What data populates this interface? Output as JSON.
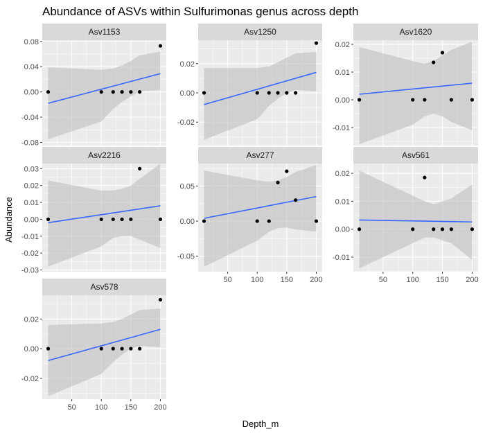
{
  "chart_data": {
    "type": "scatter",
    "title": "Abundance of ASVs within Sulfurimonas genus across depth",
    "xlabel": "Depth_m",
    "ylabel": "Abundance",
    "x_ticks": [
      50,
      100,
      150,
      200
    ],
    "xlim": [
      0,
      210
    ],
    "facet_grid": "free-y",
    "colors": {
      "panel_bg": "#ebebeb",
      "grid_major": "#ffffff",
      "strip_bg": "#d9d9d9",
      "point": "#000000",
      "fit_line": "#3366ff",
      "ribbon": "#bebebe"
    },
    "panels": [
      {
        "name": "Asv1153",
        "ylim": [
          -0.085,
          0.082
        ],
        "y_ticks": [
          -0.08,
          -0.04,
          0.0,
          0.04,
          0.08
        ],
        "y_tick_labels": [
          "-0.08",
          "-0.04",
          "0.00",
          "0.04",
          "0.08"
        ],
        "x": [
          10,
          100,
          120,
          135,
          150,
          165,
          200
        ],
        "y": [
          0,
          0,
          0,
          0,
          0,
          0,
          0.073
        ],
        "fit": {
          "x0": 10,
          "y0": -0.018,
          "x1": 200,
          "y1": 0.029
        },
        "ribbon_lower": [
          -0.075,
          -0.047,
          -0.027,
          -0.016,
          -0.007,
          0.001,
          0.003
        ],
        "ribbon_upper": [
          0.039,
          0.035,
          0.037,
          0.042,
          0.049,
          0.058,
          0.064
        ]
      },
      {
        "name": "Asv1250",
        "ylim": [
          -0.036,
          0.036
        ],
        "y_ticks": [
          -0.02,
          0.0,
          0.02
        ],
        "y_tick_labels": [
          "-0.02",
          "0.00",
          "0.02"
        ],
        "x": [
          10,
          100,
          120,
          135,
          150,
          165,
          200
        ],
        "y": [
          0,
          0,
          0,
          0,
          0,
          0,
          0.034
        ],
        "fit": {
          "x0": 10,
          "y0": -0.008,
          "x1": 200,
          "y1": 0.014
        },
        "ribbon_lower": [
          -0.032,
          -0.018,
          -0.009,
          -0.004,
          0.0,
          0.002,
          0.001
        ],
        "ribbon_upper": [
          0.017,
          0.017,
          0.018,
          0.021,
          0.024,
          0.027,
          0.028
        ]
      },
      {
        "name": "Asv1620",
        "ylim": [
          -0.0165,
          0.0215
        ],
        "y_ticks": [
          -0.01,
          0.0,
          0.01,
          0.02
        ],
        "y_tick_labels": [
          "-0.01",
          "0.00",
          "0.01",
          "0.02"
        ],
        "x": [
          10,
          100,
          120,
          135,
          150,
          165,
          200
        ],
        "y": [
          0,
          0,
          0,
          0.0135,
          0.017,
          0,
          0
        ],
        "fit": {
          "x0": 10,
          "y0": 0.002,
          "x1": 200,
          "y1": 0.006
        },
        "ribbon_lower": [
          -0.016,
          -0.009,
          -0.006,
          -0.005,
          -0.006,
          -0.008,
          -0.011
        ],
        "ribbon_upper": [
          0.019,
          0.014,
          0.013,
          0.014,
          0.016,
          0.018,
          0.021
        ]
      },
      {
        "name": "Asv2216",
        "ylim": [
          -0.031,
          0.033
        ],
        "y_ticks": [
          -0.03,
          -0.02,
          -0.01,
          0.0,
          0.01,
          0.02,
          0.03
        ],
        "y_tick_labels": [
          "-0.03",
          "-0.02",
          "-0.01",
          "0.00",
          "0.01",
          "0.02",
          "0.03"
        ],
        "x": [
          10,
          100,
          120,
          135,
          150,
          165,
          200
        ],
        "y": [
          0,
          0,
          0,
          0,
          0,
          0.03,
          0
        ],
        "fit": {
          "x0": 10,
          "y0": -0.002,
          "x1": 200,
          "y1": 0.008
        },
        "ribbon_lower": [
          -0.028,
          -0.016,
          -0.011,
          -0.01,
          -0.01,
          -0.012,
          -0.017
        ],
        "ribbon_upper": [
          0.023,
          0.017,
          0.017,
          0.018,
          0.02,
          0.024,
          0.033
        ]
      },
      {
        "name": "Asv277",
        "ylim": [
          -0.072,
          0.082
        ],
        "y_ticks": [
          -0.05,
          0.0,
          0.05
        ],
        "y_tick_labels": [
          "-0.05",
          "0.00",
          "0.05"
        ],
        "x": [
          10,
          100,
          120,
          135,
          150,
          165,
          200
        ],
        "y": [
          0,
          0,
          0,
          0.055,
          0.071,
          0.03,
          0
        ],
        "fit": {
          "x0": 10,
          "y0": 0.004,
          "x1": 200,
          "y1": 0.035
        },
        "ribbon_lower": [
          -0.065,
          -0.028,
          -0.015,
          -0.01,
          -0.009,
          -0.012,
          -0.015
        ],
        "ribbon_upper": [
          0.072,
          0.058,
          0.056,
          0.058,
          0.063,
          0.07,
          0.08
        ]
      },
      {
        "name": "Asv561",
        "ylim": [
          -0.0152,
          0.0235
        ],
        "y_ticks": [
          -0.01,
          0.0,
          0.01,
          0.02
        ],
        "y_tick_labels": [
          "-0.01",
          "0.00",
          "0.01",
          "0.02"
        ],
        "x": [
          10,
          100,
          120,
          135,
          150,
          165,
          200
        ],
        "y": [
          0,
          0,
          0.0185,
          0,
          0,
          0,
          0
        ],
        "fit": {
          "x0": 10,
          "y0": 0.0033,
          "x1": 200,
          "y1": 0.0026
        },
        "ribbon_lower": [
          -0.014,
          -0.005,
          -0.003,
          -0.003,
          -0.004,
          -0.005,
          -0.011
        ],
        "ribbon_upper": [
          0.021,
          0.012,
          0.01,
          0.009,
          0.01,
          0.011,
          0.016
        ]
      },
      {
        "name": "Asv578",
        "ylim": [
          -0.034,
          0.036
        ],
        "y_ticks": [
          -0.02,
          0.0,
          0.02
        ],
        "y_tick_labels": [
          "-0.02",
          "0.00",
          "0.02"
        ],
        "x": [
          10,
          100,
          120,
          135,
          150,
          165,
          200
        ],
        "y": [
          0,
          0,
          0,
          0,
          0,
          0,
          0.033
        ],
        "fit": {
          "x0": 10,
          "y0": -0.008,
          "x1": 200,
          "y1": 0.013
        },
        "ribbon_lower": [
          -0.032,
          -0.017,
          -0.009,
          -0.004,
          0.0,
          0.002,
          0.001
        ],
        "ribbon_upper": [
          0.016,
          0.017,
          0.018,
          0.02,
          0.023,
          0.026,
          0.027
        ]
      }
    ]
  }
}
